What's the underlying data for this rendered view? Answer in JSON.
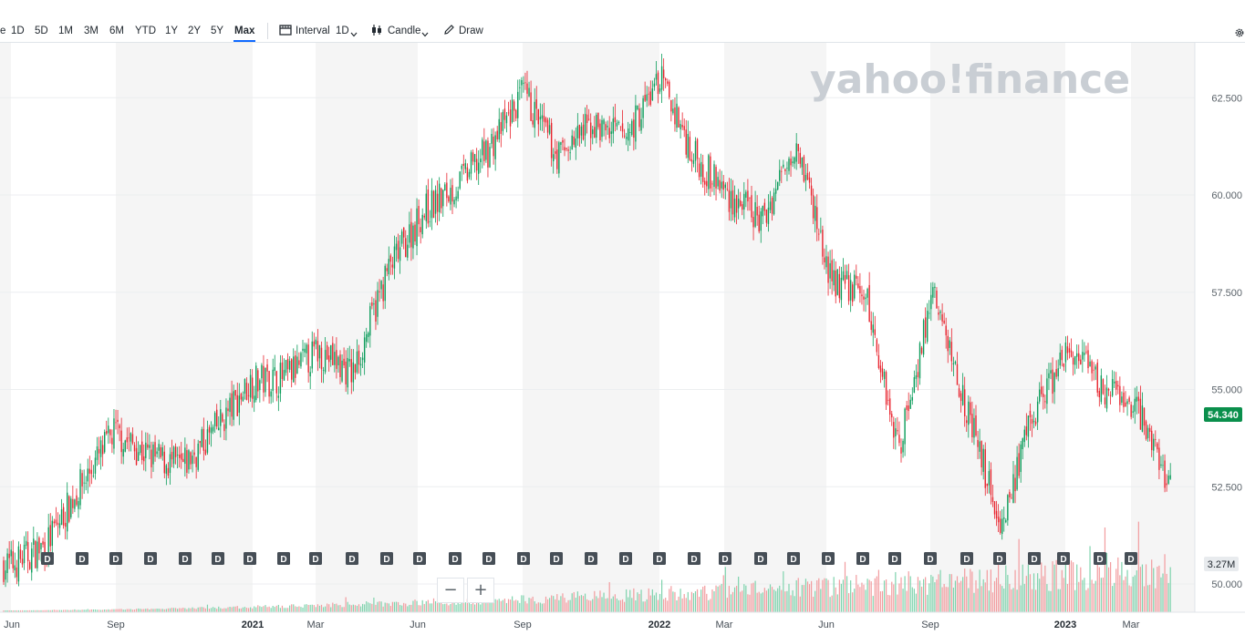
{
  "toolbar": {
    "ranges": [
      {
        "label": "e"
      },
      {
        "label": "1D"
      },
      {
        "label": "5D"
      },
      {
        "label": "1M"
      },
      {
        "label": "3M"
      },
      {
        "label": "6M"
      },
      {
        "label": "YTD"
      },
      {
        "label": "1Y"
      },
      {
        "label": "2Y"
      },
      {
        "label": "5Y"
      },
      {
        "label": "Max"
      }
    ],
    "active_range": "Max",
    "interval_label": "Interval",
    "interval_value": "1D",
    "chart_type_label": "Candle",
    "draw_label": "Draw",
    "icons": [
      "interval-icon",
      "candle-icon",
      "draw-pencil-icon",
      "settings-gear-icon",
      "chevron-down-icon"
    ]
  },
  "watermark": {
    "text": "yahoo!finance"
  },
  "price": {
    "current": "54.340",
    "color": "#0a8f4c"
  },
  "volume": {
    "current": "3.27M"
  },
  "zoom": {
    "out": "−",
    "in": "+"
  },
  "colors": {
    "up": "#0a9c5a",
    "down": "#e8242e",
    "up_volume": "#7fd3ad",
    "down_volume": "#f29c9f",
    "shade": "#f5f5f5"
  },
  "chart_data": {
    "type": "candlestick",
    "y_ticks": [
      "62.500",
      "60.000",
      "57.500",
      "55.000",
      "52.500",
      "50.000"
    ],
    "ylim": [
      49.7,
      63.7
    ],
    "x_ticks": [
      "Jun",
      "Sep",
      "2021",
      "Mar",
      "Jun",
      "Sep",
      "2022",
      "Mar",
      "Jun",
      "Sep",
      "2023",
      "Mar"
    ],
    "year_ticks": [
      "2021",
      "2022",
      "2023"
    ],
    "dividend_marker": "D",
    "dividend_count": 34,
    "close_series": [
      {
        "x": "2020-05",
        "y": 50.5
      },
      {
        "x": "2020-06",
        "y": 51.0
      },
      {
        "x": "2020-07",
        "y": 52.5
      },
      {
        "x": "2020-08",
        "y": 53.9
      },
      {
        "x": "2020-09",
        "y": 53.3
      },
      {
        "x": "2020-10",
        "y": 53.0
      },
      {
        "x": "2020-11",
        "y": 54.0
      },
      {
        "x": "2020-12",
        "y": 55.2
      },
      {
        "x": "2021-01",
        "y": 55.3
      },
      {
        "x": "2021-02",
        "y": 56.0
      },
      {
        "x": "2021-03",
        "y": 55.4
      },
      {
        "x": "2021-04",
        "y": 58.0
      },
      {
        "x": "2021-05",
        "y": 59.5
      },
      {
        "x": "2021-06",
        "y": 60.2
      },
      {
        "x": "2021-07",
        "y": 61.2
      },
      {
        "x": "2021-08",
        "y": 62.6
      },
      {
        "x": "2021-09",
        "y": 61.0
      },
      {
        "x": "2021-10",
        "y": 61.8
      },
      {
        "x": "2021-11",
        "y": 61.5
      },
      {
        "x": "2021-12",
        "y": 63.0
      },
      {
        "x": "2022-01",
        "y": 61.0
      },
      {
        "x": "2022-02",
        "y": 60.0
      },
      {
        "x": "2022-03",
        "y": 59.3
      },
      {
        "x": "2022-04",
        "y": 61.5
      },
      {
        "x": "2022-05",
        "y": 57.8
      },
      {
        "x": "2022-06",
        "y": 57.5
      },
      {
        "x": "2022-07",
        "y": 53.5
      },
      {
        "x": "2022-08",
        "y": 57.5
      },
      {
        "x": "2022-09",
        "y": 54.5
      },
      {
        "x": "2022-10",
        "y": 51.5
      },
      {
        "x": "2022-11",
        "y": 54.5
      },
      {
        "x": "2022-12",
        "y": 56.0
      },
      {
        "x": "2023-01",
        "y": 55.0
      },
      {
        "x": "2023-02",
        "y": 54.5
      },
      {
        "x": "2023-03",
        "y": 52.5
      },
      {
        "x": "2023-04",
        "y": 54.34
      }
    ]
  }
}
